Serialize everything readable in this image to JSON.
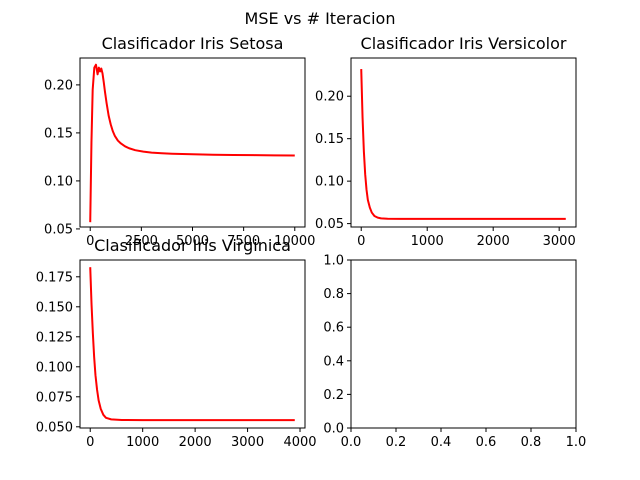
{
  "suptitle": "MSE vs # Iteracion",
  "colors": {
    "series": "#ff0000",
    "axis": "#000000"
  },
  "chart_data": [
    {
      "type": "line",
      "title": "Clasificador Iris Setosa",
      "xlabel": "",
      "ylabel": "",
      "xlim": [
        -500,
        10500
      ],
      "ylim": [
        0.052,
        0.228
      ],
      "xticks": [
        0,
        2500,
        5000,
        7500,
        10000
      ],
      "xtick_labels": [
        "0",
        "2500",
        "5000",
        "7500",
        "10000"
      ],
      "yticks": [
        0.05,
        0.1,
        0.15,
        0.2
      ],
      "ytick_labels": [
        "0.05",
        "0.10",
        "0.15",
        "0.20"
      ],
      "grid": false,
      "series": [
        {
          "x": [
            0,
            60,
            120,
            200,
            280,
            360,
            420,
            480,
            540,
            600,
            660,
            720,
            800,
            900,
            1000,
            1100,
            1200,
            1350,
            1500,
            1700,
            1900,
            2200,
            2600,
            3000,
            3500,
            4000,
            5000,
            6000,
            7000,
            8000,
            9000,
            10000
          ],
          "y": [
            0.057,
            0.14,
            0.195,
            0.218,
            0.221,
            0.211,
            0.218,
            0.214,
            0.217,
            0.212,
            0.203,
            0.193,
            0.181,
            0.168,
            0.159,
            0.152,
            0.147,
            0.142,
            0.139,
            0.136,
            0.134,
            0.132,
            0.1305,
            0.1295,
            0.1288,
            0.1283,
            0.1277,
            0.1273,
            0.127,
            0.1268,
            0.1266,
            0.1265
          ]
        }
      ]
    },
    {
      "type": "line",
      "title": "Clasificador Iris Versicolor",
      "xlabel": "",
      "ylabel": "",
      "xlim": [
        -155,
        3255
      ],
      "ylim": [
        0.046,
        0.245
      ],
      "xticks": [
        0,
        1000,
        2000,
        3000
      ],
      "xtick_labels": [
        "0",
        "1000",
        "2000",
        "3000"
      ],
      "yticks": [
        0.05,
        0.1,
        0.15,
        0.2
      ],
      "ytick_labels": [
        "0.05",
        "0.10",
        "0.15",
        "0.20"
      ],
      "grid": false,
      "series": [
        {
          "x": [
            0,
            20,
            40,
            60,
            80,
            100,
            130,
            160,
            200,
            250,
            300,
            400,
            600,
            1000,
            2000,
            3100
          ],
          "y": [
            0.232,
            0.175,
            0.135,
            0.108,
            0.09,
            0.078,
            0.069,
            0.063,
            0.059,
            0.057,
            0.0562,
            0.0557,
            0.0555,
            0.0555,
            0.0555,
            0.0555
          ]
        }
      ]
    },
    {
      "type": "line",
      "title": "Clasificador Iris Virginica",
      "xlabel": "",
      "ylabel": "",
      "xlim": [
        -195,
        4095
      ],
      "ylim": [
        0.049,
        0.189
      ],
      "xticks": [
        0,
        1000,
        2000,
        3000,
        4000
      ],
      "xtick_labels": [
        "0",
        "1000",
        "2000",
        "3000",
        "4000"
      ],
      "yticks": [
        0.05,
        0.075,
        0.1,
        0.125,
        0.15,
        0.175
      ],
      "ytick_labels": [
        "0.050",
        "0.075",
        "0.100",
        "0.125",
        "0.150",
        "0.175"
      ],
      "grid": false,
      "series": [
        {
          "x": [
            0,
            25,
            50,
            75,
            100,
            130,
            160,
            200,
            250,
            300,
            400,
            600,
            1000,
            2000,
            3000,
            3900
          ],
          "y": [
            0.183,
            0.152,
            0.128,
            0.108,
            0.093,
            0.081,
            0.072,
            0.065,
            0.06,
            0.0575,
            0.0562,
            0.0557,
            0.0556,
            0.0556,
            0.0556,
            0.0556
          ]
        }
      ]
    },
    {
      "type": "line",
      "title": "",
      "xlabel": "",
      "ylabel": "",
      "xlim": [
        0,
        1
      ],
      "ylim": [
        0,
        1
      ],
      "xticks": [
        0.0,
        0.2,
        0.4,
        0.6,
        0.8,
        1.0
      ],
      "xtick_labels": [
        "0.0",
        "0.2",
        "0.4",
        "0.6",
        "0.8",
        "1.0"
      ],
      "yticks": [
        0.0,
        0.2,
        0.4,
        0.6,
        0.8,
        1.0
      ],
      "ytick_labels": [
        "0.0",
        "0.2",
        "0.4",
        "0.6",
        "0.8",
        "1.0"
      ],
      "grid": false,
      "series": []
    }
  ]
}
